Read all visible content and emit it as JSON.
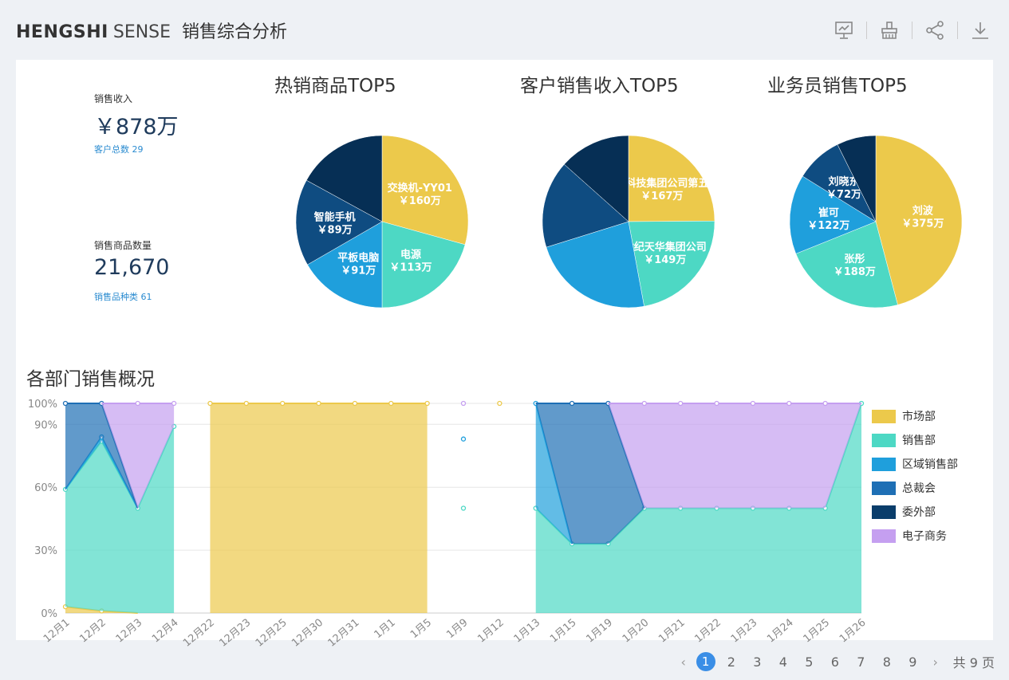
{
  "header": {
    "brand_bold": "HENGSHI",
    "brand_light": "SENSE",
    "title": "销售综合分析",
    "tools": [
      "presentation-icon",
      "clear-icon",
      "share-icon",
      "download-icon"
    ]
  },
  "kpi": [
    {
      "label": "销售收入",
      "value": "￥878万",
      "sub": "客户总数 29"
    },
    {
      "label": "销售商品数量",
      "value": "21,670",
      "sub": "销售品种类 61"
    }
  ],
  "pies": [
    {
      "title": "热销商品TOP5",
      "slices": [
        {
          "name": "交换机-YY01",
          "label": "￥160万",
          "value": 160,
          "color": "#ecc94b"
        },
        {
          "name": "电源",
          "label": "￥113万",
          "value": 113,
          "color": "#4dd8c4"
        },
        {
          "name": "平板电脑",
          "label": "￥91万",
          "value": 91,
          "color": "#1f9fdc"
        },
        {
          "name": "智能手机",
          "label": "￥89万",
          "value": 89,
          "color": "#0f4c81"
        },
        {
          "name": "",
          "label": "",
          "value": 93,
          "color": "#062f55"
        }
      ]
    },
    {
      "title": "客户销售收入TOP5",
      "slices": [
        {
          "name": "中国电子科技集团公司第五十四研",
          "label": "￥167万",
          "value": 167,
          "color": "#ecc94b"
        },
        {
          "name": "世纪天华集团公司",
          "label": "￥149万",
          "value": 149,
          "color": "#4dd8c4"
        },
        {
          "name": "",
          "label": "",
          "value": 155,
          "color": "#1f9fdc"
        },
        {
          "name": "",
          "label": "",
          "value": 110,
          "color": "#0f4c81"
        },
        {
          "name": "",
          "label": "",
          "value": 90,
          "color": "#062f55"
        }
      ]
    },
    {
      "title": "业务员销售TOP5",
      "slices": [
        {
          "name": "刘波",
          "label": "￥375万",
          "value": 375,
          "color": "#ecc94b"
        },
        {
          "name": "张彤",
          "label": "￥188万",
          "value": 188,
          "color": "#4dd8c4"
        },
        {
          "name": "崔可",
          "label": "￥122万",
          "value": 122,
          "color": "#1f9fdc"
        },
        {
          "name": "刘晓东",
          "label": "￥72万",
          "value": 72,
          "color": "#0f4c81"
        },
        {
          "name": "",
          "label": "",
          "value": 60,
          "color": "#062f55"
        }
      ]
    }
  ],
  "dept_chart": {
    "title": "各部门销售概况",
    "y_ticks": [
      "0%",
      "30%",
      "60%",
      "90%",
      "100%"
    ]
  },
  "chart_data": {
    "type": "area",
    "stacked_percent": true,
    "categories": [
      "12月1",
      "12月2",
      "12月3",
      "12月4",
      "12月22",
      "12月23",
      "12月25",
      "12月30",
      "12月31",
      "1月1",
      "1月5",
      "1月9",
      "1月12",
      "1月13",
      "1月15",
      "1月19",
      "1月20",
      "1月21",
      "1月22",
      "1月23",
      "1月24",
      "1月25",
      "1月26"
    ],
    "ylim": [
      0,
      100
    ],
    "legend_position": "right",
    "series": [
      {
        "name": "市场部",
        "color": "#ecc94b",
        "values": [
          3,
          1,
          0,
          0,
          100,
          100,
          100,
          100,
          100,
          100,
          100,
          null,
          100,
          0,
          0,
          0,
          0,
          0,
          0,
          0,
          0,
          0,
          0
        ]
      },
      {
        "name": "销售部",
        "color": "#4dd8c4",
        "values": [
          56,
          81,
          50,
          89,
          0,
          0,
          0,
          0,
          0,
          0,
          0,
          50,
          null,
          50,
          33,
          33,
          50,
          50,
          50,
          50,
          50,
          50,
          100
        ]
      },
      {
        "name": "区域销售部",
        "color": "#1f9fdc",
        "values": [
          0,
          2,
          0,
          0,
          0,
          0,
          0,
          0,
          0,
          0,
          0,
          33,
          null,
          50,
          0,
          0,
          0,
          0,
          0,
          0,
          0,
          0,
          0
        ]
      },
      {
        "name": "总裁会",
        "color": "#1e6fb5",
        "values": [
          41,
          16,
          0,
          0,
          0,
          0,
          0,
          0,
          0,
          0,
          0,
          0,
          null,
          0,
          67,
          67,
          0,
          0,
          0,
          0,
          0,
          0,
          0
        ]
      },
      {
        "name": "委外部",
        "color": "#0a3d6b",
        "values": [
          0,
          0,
          0,
          0,
          0,
          0,
          0,
          0,
          0,
          0,
          0,
          0,
          null,
          0,
          0,
          0,
          0,
          0,
          0,
          0,
          0,
          0,
          0
        ]
      },
      {
        "name": "电子商务",
        "color": "#c59ff0",
        "values": [
          0,
          0,
          50,
          11,
          0,
          0,
          0,
          0,
          0,
          0,
          0,
          17,
          null,
          0,
          0,
          0,
          50,
          50,
          50,
          50,
          50,
          50,
          0
        ]
      }
    ]
  },
  "pagination": {
    "pages": [
      "1",
      "2",
      "3",
      "4",
      "5",
      "6",
      "7",
      "8",
      "9"
    ],
    "current": "1",
    "prev": "‹",
    "next": "›",
    "total_text": "共 9 页"
  }
}
